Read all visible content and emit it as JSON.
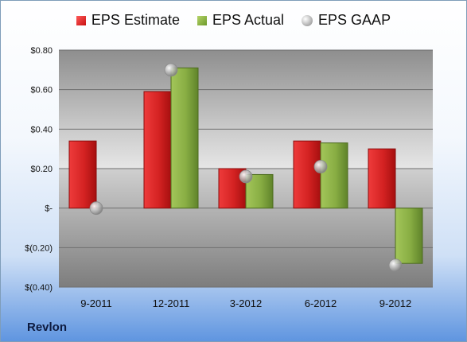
{
  "company": "Revlon",
  "chart_data": {
    "type": "bar",
    "categories": [
      "9-2011",
      "12-2011",
      "3-2012",
      "6-2012",
      "9-2012"
    ],
    "series": [
      {
        "name": "EPS Estimate",
        "kind": "bar",
        "color": "#d42a2a",
        "values": [
          0.34,
          0.59,
          0.2,
          0.34,
          0.3
        ]
      },
      {
        "name": "EPS Actual",
        "kind": "bar",
        "color": "#8db44a",
        "values": [
          null,
          0.71,
          0.17,
          0.33,
          -0.28
        ]
      },
      {
        "name": "EPS GAAP",
        "kind": "marker",
        "color": "#b0b0b0",
        "values": [
          0.0,
          0.7,
          0.16,
          0.21,
          -0.29
        ]
      }
    ],
    "yticks": [
      0.8,
      0.6,
      0.4,
      0.2,
      0,
      -0.2,
      -0.4
    ],
    "ytick_labels": [
      "$0.80",
      "$0.60",
      "$0.40",
      "$0.20",
      "$-",
      "$(0.20)",
      "$(0.40)"
    ],
    "ylim": [
      -0.4,
      0.8
    ],
    "grid": true,
    "legend_position": "top"
  }
}
